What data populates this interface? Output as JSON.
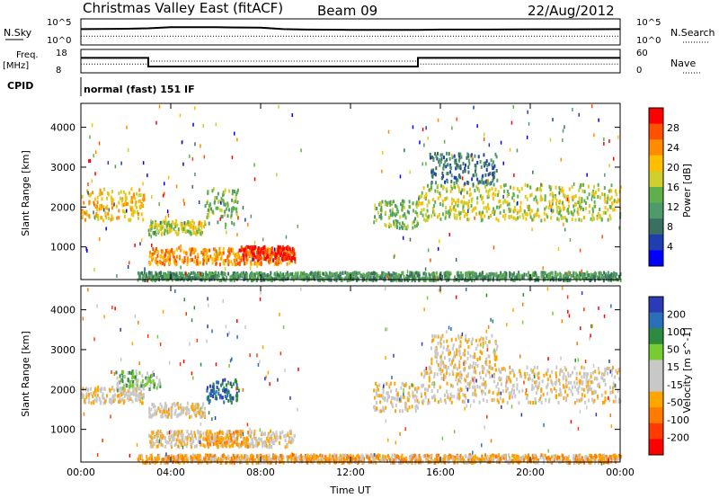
{
  "header": {
    "station": "Christmas Valley East (fitACF)",
    "beam": "Beam 09",
    "date": "22/Aug/2012"
  },
  "aux_panels": {
    "nsky_label": "N.Sky",
    "nsky_ticks": [
      "10^5",
      "10^0"
    ],
    "nsearch_label": "N.Search",
    "freq_label_1": "Freq.",
    "freq_label_2": "[MHz]",
    "freq_ticks": [
      "18",
      "8"
    ],
    "nave_ticks": [
      "60",
      "0"
    ],
    "nave_label": "Nave",
    "cpid_label": "CPID",
    "cpid_value": "normal (fast) 151 IF"
  },
  "colors": {
    "power_scale": [
      "#0000ff",
      "#1f3fb0",
      "#3a7060",
      "#4f9a6b",
      "#5fb04c",
      "#cfcf30",
      "#ffbe00",
      "#ff8c00",
      "#ff5000",
      "#ff0000"
    ],
    "velocity_scale": [
      "#2b3bb5",
      "#2a6fb8",
      "#2e8a3f",
      "#77cc33",
      "#c8c8c8",
      "#c8c8c8",
      "#ffa500",
      "#ff7a00",
      "#ff3a00",
      "#ff0000"
    ],
    "groundscatter": "#c8c8c8"
  },
  "chart_data": [
    {
      "type": "line",
      "title": "N.Sky / N.Search",
      "x": [
        "00:00",
        "02:00",
        "03:00",
        "04:00",
        "06:00",
        "08:00",
        "09:00",
        "10:00",
        "12:00",
        "14:00",
        "15:00",
        "16:00",
        "18:00",
        "20:00",
        "22:00",
        "00:00"
      ],
      "series": [
        {
          "name": "N.Sky",
          "values": [
            1000,
            1200,
            1500,
            2500,
            2500,
            2000,
            1000,
            800,
            700,
            700,
            700,
            800,
            800,
            900,
            900,
            1000
          ]
        },
        {
          "name": "N.Search",
          "values": [
            30,
            30,
            30,
            30,
            30,
            30,
            30,
            30,
            30,
            30,
            30,
            30,
            30,
            30,
            30,
            30
          ]
        }
      ],
      "ylim": [
        "10^0",
        "10^5"
      ]
    },
    {
      "type": "line",
      "title": "Freq. / Nave",
      "x": [
        "00:00",
        "03:00",
        "03:00",
        "15:00",
        "15:00",
        "24:00"
      ],
      "series": [
        {
          "name": "Freq. [MHz]",
          "values": [
            14.5,
            14.5,
            10.5,
            10.5,
            14.5,
            14.5
          ]
        },
        {
          "name": "Nave",
          "values": [
            22,
            22,
            30,
            30,
            22,
            22
          ]
        }
      ],
      "ylim_left": [
        8,
        18
      ],
      "ylim_right": [
        0,
        60
      ]
    },
    {
      "type": "heatmap",
      "title": "Power",
      "xlabel": "",
      "ylabel": "Slant Range [km]",
      "x_ticks": [
        "00:00",
        "04:00",
        "08:00",
        "12:00",
        "16:00",
        "20:00",
        "00:00"
      ],
      "y_ticks": [
        "1000",
        "2000",
        "3000",
        "4000"
      ],
      "ylim": [
        180,
        4600
      ],
      "colorbar_label": "Power [dB]",
      "colorbar_ticks": [
        "4",
        "8",
        "12",
        "16",
        "20",
        "24",
        "28"
      ],
      "scatter_regions": [
        {
          "t": [
            0.0,
            2.8
          ],
          "range": [
            1700,
            2500
          ],
          "level": 6
        },
        {
          "t": [
            3.0,
            5.5
          ],
          "range": [
            1350,
            1700
          ],
          "level": 5
        },
        {
          "t": [
            5.5,
            7.0
          ],
          "range": [
            1600,
            2500
          ],
          "level": 4
        },
        {
          "t": [
            3.0,
            9.5
          ],
          "range": [
            600,
            1000
          ],
          "level": 7
        },
        {
          "t": [
            7.0,
            9.5
          ],
          "range": [
            700,
            1050
          ],
          "level": 9
        },
        {
          "t": [
            13.0,
            15.0
          ],
          "range": [
            1500,
            2200
          ],
          "level": 4
        },
        {
          "t": [
            15.0,
            24.0
          ],
          "range": [
            1700,
            2600
          ],
          "level": 5
        },
        {
          "t": [
            15.5,
            18.5
          ],
          "range": [
            2600,
            3400
          ],
          "level": 2
        },
        {
          "t": [
            2.5,
            24.0
          ],
          "range": [
            200,
            400
          ],
          "level": 3
        }
      ]
    },
    {
      "type": "heatmap",
      "title": "Velocity",
      "xlabel": "Time UT",
      "ylabel": "Slant Range [km]",
      "x_ticks": [
        "00:00",
        "04:00",
        "08:00",
        "12:00",
        "16:00",
        "20:00",
        "00:00"
      ],
      "y_ticks": [
        "1000",
        "2000",
        "3000",
        "4000"
      ],
      "ylim": [
        180,
        4600
      ],
      "colorbar_label": "Velocity [m s^-1]",
      "colorbar_ticks": [
        "200",
        "100",
        "50",
        "15",
        "-15",
        "-50",
        "-100",
        "-200"
      ],
      "scatter_regions": [
        {
          "t": [
            0.0,
            2.8
          ],
          "range": [
            1700,
            2100
          ],
          "level": 5
        },
        {
          "t": [
            1.5,
            3.5
          ],
          "range": [
            2050,
            2500
          ],
          "level": 3
        },
        {
          "t": [
            3.0,
            5.5
          ],
          "range": [
            1350,
            1700
          ],
          "level": 5
        },
        {
          "t": [
            5.5,
            7.0
          ],
          "range": [
            1700,
            2300
          ],
          "level": 1
        },
        {
          "t": [
            3.0,
            9.5
          ],
          "range": [
            600,
            1000
          ],
          "level": 5
        },
        {
          "t": [
            5.5,
            7.5
          ],
          "range": [
            600,
            1000
          ],
          "level": 6
        },
        {
          "t": [
            13.0,
            15.0
          ],
          "range": [
            1500,
            2200
          ],
          "level": 5
        },
        {
          "t": [
            15.0,
            24.0
          ],
          "range": [
            1700,
            2600
          ],
          "level": 5
        },
        {
          "t": [
            15.5,
            18.5
          ],
          "range": [
            2600,
            3400
          ],
          "level": 5
        },
        {
          "t": [
            2.5,
            24.0
          ],
          "range": [
            200,
            400
          ],
          "level": 6
        }
      ]
    }
  ]
}
